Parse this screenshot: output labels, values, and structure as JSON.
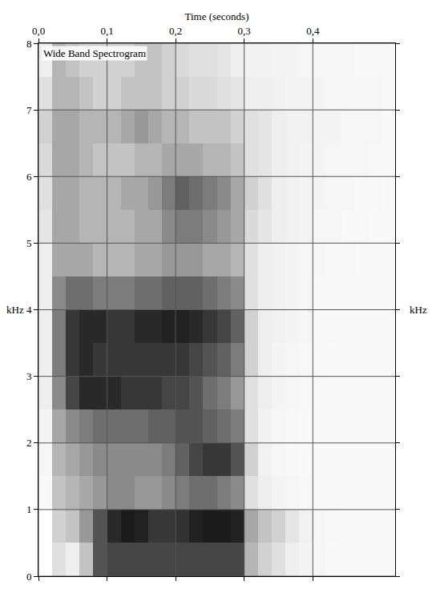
{
  "chart_data": {
    "type": "heatmap",
    "title": "Wide Band Spectrogram",
    "xlabel": "Time (seconds)",
    "ylabel": "kHz",
    "x": [
      0.01,
      0.03,
      0.05,
      0.07,
      0.09,
      0.11,
      0.13,
      0.15,
      0.17,
      0.19,
      0.21,
      0.23,
      0.25,
      0.27,
      0.29,
      0.31,
      0.33,
      0.35,
      0.37,
      0.39,
      0.41,
      0.43,
      0.45,
      0.47,
      0.49,
      0.51
    ],
    "y": [
      0.25,
      0.75,
      1.25,
      1.75,
      2.25,
      2.75,
      3.25,
      3.75,
      4.25,
      4.75,
      5.25,
      5.75,
      6.25,
      6.75,
      7.25,
      7.75
    ],
    "z": [
      [
        0,
        20,
        15,
        30,
        70,
        75,
        75,
        75,
        75,
        75,
        75,
        75,
        75,
        75,
        75,
        35,
        25,
        20,
        15,
        10,
        8,
        5,
        5,
        5,
        5,
        5
      ],
      [
        0,
        25,
        30,
        45,
        70,
        85,
        90,
        88,
        80,
        80,
        82,
        88,
        90,
        90,
        88,
        40,
        30,
        25,
        18,
        12,
        8,
        6,
        5,
        5,
        5,
        5
      ],
      [
        5,
        30,
        35,
        40,
        45,
        50,
        50,
        45,
        45,
        50,
        55,
        60,
        60,
        55,
        50,
        20,
        15,
        10,
        8,
        6,
        5,
        5,
        5,
        5,
        5,
        5
      ],
      [
        8,
        35,
        40,
        45,
        50,
        50,
        50,
        50,
        50,
        55,
        65,
        75,
        80,
        80,
        70,
        25,
        12,
        8,
        6,
        5,
        5,
        5,
        5,
        5,
        5,
        5
      ],
      [
        10,
        40,
        50,
        55,
        60,
        60,
        60,
        60,
        65,
        65,
        70,
        70,
        65,
        60,
        55,
        20,
        12,
        8,
        6,
        5,
        5,
        5,
        5,
        5,
        5,
        5
      ],
      [
        15,
        50,
        75,
        85,
        85,
        85,
        80,
        80,
        80,
        75,
        75,
        70,
        60,
        55,
        45,
        20,
        15,
        10,
        8,
        6,
        6,
        5,
        5,
        5,
        5,
        5
      ],
      [
        15,
        55,
        80,
        85,
        80,
        80,
        80,
        80,
        80,
        80,
        80,
        75,
        70,
        65,
        55,
        25,
        15,
        10,
        8,
        6,
        6,
        5,
        5,
        5,
        5,
        5
      ],
      [
        15,
        55,
        80,
        85,
        85,
        80,
        80,
        85,
        85,
        88,
        88,
        85,
        80,
        75,
        65,
        25,
        15,
        12,
        10,
        8,
        6,
        6,
        5,
        5,
        5,
        5
      ],
      [
        15,
        50,
        60,
        60,
        55,
        55,
        55,
        60,
        60,
        65,
        65,
        65,
        60,
        55,
        50,
        20,
        15,
        12,
        10,
        8,
        6,
        6,
        5,
        5,
        5,
        5
      ],
      [
        15,
        40,
        40,
        40,
        35,
        35,
        35,
        40,
        40,
        45,
        45,
        45,
        40,
        40,
        35,
        20,
        15,
        12,
        10,
        8,
        8,
        6,
        6,
        5,
        5,
        5
      ],
      [
        18,
        40,
        40,
        35,
        35,
        35,
        35,
        40,
        40,
        50,
        55,
        55,
        50,
        45,
        40,
        22,
        18,
        15,
        12,
        10,
        8,
        8,
        6,
        6,
        5,
        5
      ],
      [
        20,
        40,
        40,
        35,
        35,
        35,
        40,
        40,
        45,
        55,
        65,
        60,
        55,
        50,
        40,
        25,
        20,
        15,
        12,
        10,
        10,
        8,
        8,
        6,
        6,
        5
      ],
      [
        22,
        40,
        40,
        35,
        30,
        30,
        30,
        35,
        35,
        40,
        40,
        40,
        35,
        35,
        30,
        20,
        18,
        15,
        12,
        10,
        10,
        8,
        8,
        8,
        6,
        6
      ],
      [
        25,
        40,
        40,
        35,
        35,
        35,
        40,
        45,
        40,
        35,
        35,
        30,
        30,
        30,
        25,
        20,
        18,
        15,
        12,
        12,
        10,
        10,
        8,
        8,
        8,
        6
      ],
      [
        20,
        35,
        35,
        30,
        25,
        25,
        30,
        30,
        30,
        25,
        25,
        22,
        22,
        20,
        18,
        15,
        15,
        12,
        10,
        10,
        10,
        8,
        8,
        8,
        8,
        6
      ],
      [
        15,
        35,
        30,
        25,
        25,
        25,
        25,
        30,
        30,
        25,
        22,
        20,
        20,
        18,
        15,
        12,
        12,
        10,
        10,
        8,
        8,
        8,
        8,
        6,
        6,
        6
      ]
    ],
    "zlim": [
      0,
      100
    ],
    "xlim": [
      0,
      0.52
    ],
    "ylim": [
      0,
      8
    ],
    "xticks": [
      {
        "value": 0,
        "label": "0,0"
      },
      {
        "value": 0.1,
        "label": "0,1"
      },
      {
        "value": 0.2,
        "label": "0,2"
      },
      {
        "value": 0.3,
        "label": "0,3"
      },
      {
        "value": 0.4,
        "label": "0,4"
      }
    ],
    "yticks": [
      0,
      1,
      2,
      3,
      4,
      5,
      6,
      7,
      8
    ],
    "grid": true,
    "color": "#000000"
  }
}
